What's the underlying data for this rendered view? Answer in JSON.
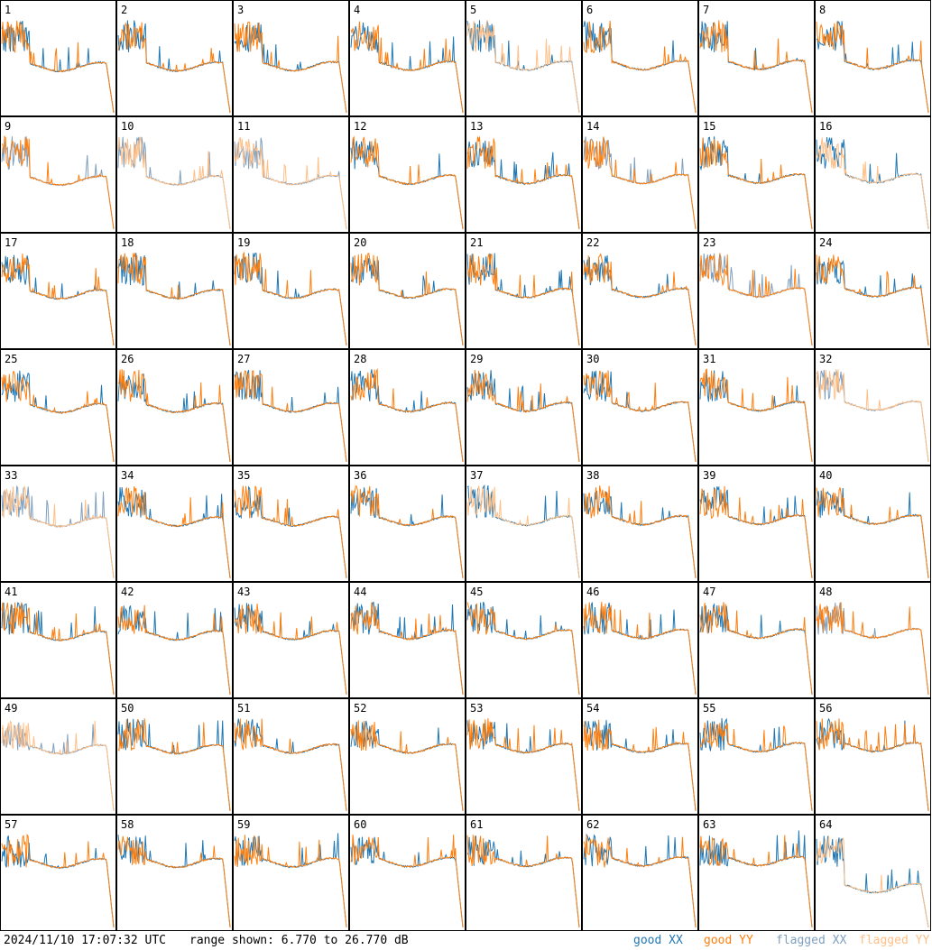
{
  "footer": {
    "timestamp": "2024/11/10 17:07:32 UTC",
    "range_text": "range shown: 6.770 to 26.770 dB"
  },
  "legend": {
    "good_xx": {
      "label": "good XX",
      "color": "#1f77b4"
    },
    "good_yy": {
      "label": "good YY",
      "color": "#ff7f0e"
    },
    "flagged_xx": {
      "label": "flagged XX",
      "color": "#7f9fbf"
    },
    "flagged_yy": {
      "label": "flagged YY",
      "color": "#ffbf87"
    }
  },
  "chart_data": {
    "type": "line",
    "layout": "8x8 small multiples",
    "y_range_db": [
      6.77,
      26.77
    ],
    "series": [
      "XX",
      "YY"
    ],
    "panels": [
      {
        "id": 1,
        "xx": "good",
        "yy": "good"
      },
      {
        "id": 2,
        "xx": "good",
        "yy": "good"
      },
      {
        "id": 3,
        "xx": "good",
        "yy": "good"
      },
      {
        "id": 4,
        "xx": "good",
        "yy": "good"
      },
      {
        "id": 5,
        "xx": "good",
        "yy": "flagged"
      },
      {
        "id": 6,
        "xx": "good",
        "yy": "good"
      },
      {
        "id": 7,
        "xx": "good",
        "yy": "good"
      },
      {
        "id": 8,
        "xx": "good",
        "yy": "good"
      },
      {
        "id": 9,
        "xx": "flagged",
        "yy": "good"
      },
      {
        "id": 10,
        "xx": "flagged",
        "yy": "flagged"
      },
      {
        "id": 11,
        "xx": "flagged",
        "yy": "flagged"
      },
      {
        "id": 12,
        "xx": "good",
        "yy": "good"
      },
      {
        "id": 13,
        "xx": "good",
        "yy": "good"
      },
      {
        "id": 14,
        "xx": "flagged",
        "yy": "good"
      },
      {
        "id": 15,
        "xx": "good",
        "yy": "good"
      },
      {
        "id": 16,
        "xx": "good",
        "yy": "flagged"
      },
      {
        "id": 17,
        "xx": "good",
        "yy": "good"
      },
      {
        "id": 18,
        "xx": "good",
        "yy": "good"
      },
      {
        "id": 19,
        "xx": "good",
        "yy": "good"
      },
      {
        "id": 20,
        "xx": "good",
        "yy": "good"
      },
      {
        "id": 21,
        "xx": "good",
        "yy": "good"
      },
      {
        "id": 22,
        "xx": "good",
        "yy": "good"
      },
      {
        "id": 23,
        "xx": "flagged",
        "yy": "good"
      },
      {
        "id": 24,
        "xx": "good",
        "yy": "good"
      },
      {
        "id": 25,
        "xx": "good",
        "yy": "good"
      },
      {
        "id": 26,
        "xx": "good",
        "yy": "good"
      },
      {
        "id": 27,
        "xx": "good",
        "yy": "good"
      },
      {
        "id": 28,
        "xx": "good",
        "yy": "good"
      },
      {
        "id": 29,
        "xx": "good",
        "yy": "good"
      },
      {
        "id": 30,
        "xx": "good",
        "yy": "good"
      },
      {
        "id": 31,
        "xx": "good",
        "yy": "good"
      },
      {
        "id": 32,
        "xx": "flagged",
        "yy": "flagged"
      },
      {
        "id": 33,
        "xx": "flagged",
        "yy": "flagged"
      },
      {
        "id": 34,
        "xx": "good",
        "yy": "good"
      },
      {
        "id": 35,
        "xx": "good",
        "yy": "good"
      },
      {
        "id": 36,
        "xx": "good",
        "yy": "good"
      },
      {
        "id": 37,
        "xx": "good",
        "yy": "flagged"
      },
      {
        "id": 38,
        "xx": "good",
        "yy": "good"
      },
      {
        "id": 39,
        "xx": "good",
        "yy": "good"
      },
      {
        "id": 40,
        "xx": "good",
        "yy": "good"
      },
      {
        "id": 41,
        "xx": "good",
        "yy": "good"
      },
      {
        "id": 42,
        "xx": "good",
        "yy": "good"
      },
      {
        "id": 43,
        "xx": "good",
        "yy": "good"
      },
      {
        "id": 44,
        "xx": "good",
        "yy": "good"
      },
      {
        "id": 45,
        "xx": "good",
        "yy": "good"
      },
      {
        "id": 46,
        "xx": "good",
        "yy": "good"
      },
      {
        "id": 47,
        "xx": "good",
        "yy": "good"
      },
      {
        "id": 48,
        "xx": "flagged",
        "yy": "good"
      },
      {
        "id": 49,
        "xx": "flagged",
        "yy": "flagged"
      },
      {
        "id": 50,
        "xx": "good",
        "yy": "good"
      },
      {
        "id": 51,
        "xx": "good",
        "yy": "good"
      },
      {
        "id": 52,
        "xx": "good",
        "yy": "good"
      },
      {
        "id": 53,
        "xx": "good",
        "yy": "good"
      },
      {
        "id": 54,
        "xx": "good",
        "yy": "good"
      },
      {
        "id": 55,
        "xx": "good",
        "yy": "good"
      },
      {
        "id": 56,
        "xx": "good",
        "yy": "good"
      },
      {
        "id": 57,
        "xx": "good",
        "yy": "good"
      },
      {
        "id": 58,
        "xx": "good",
        "yy": "good"
      },
      {
        "id": 59,
        "xx": "good",
        "yy": "good"
      },
      {
        "id": 60,
        "xx": "good",
        "yy": "good"
      },
      {
        "id": 61,
        "xx": "good",
        "yy": "good"
      },
      {
        "id": 62,
        "xx": "good",
        "yy": "good"
      },
      {
        "id": 63,
        "xx": "good",
        "yy": "good"
      },
      {
        "id": 64,
        "xx": "good",
        "yy": "flagged"
      }
    ]
  }
}
